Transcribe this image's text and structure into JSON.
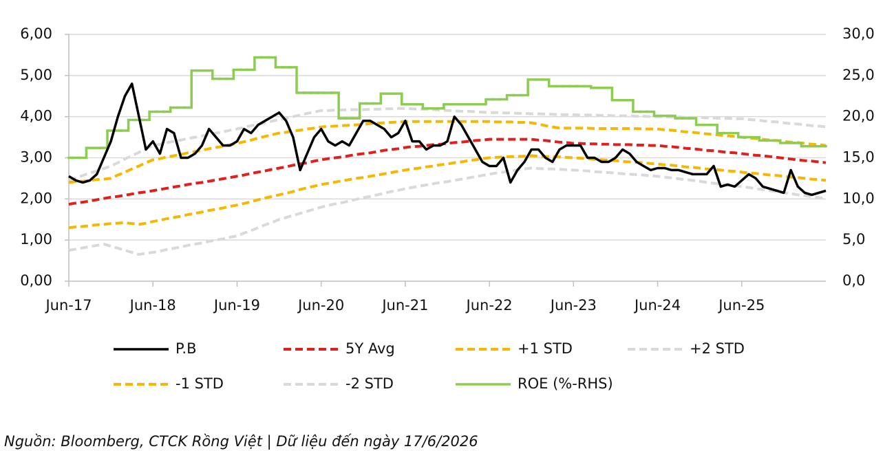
{
  "chart_data": {
    "type": "line",
    "x": [
      "Jun-17",
      "Jul-17",
      "Aug-17",
      "Sep-17",
      "Oct-17",
      "Nov-17",
      "Dec-17",
      "Jan-18",
      "Feb-18",
      "Mar-18",
      "Apr-18",
      "May-18",
      "Jun-18",
      "Jul-18",
      "Aug-18",
      "Sep-18",
      "Oct-18",
      "Nov-18",
      "Dec-18",
      "Jan-19",
      "Feb-19",
      "Mar-19",
      "Apr-19",
      "May-19",
      "Jun-19",
      "Jul-19",
      "Aug-19",
      "Sep-19",
      "Oct-19",
      "Nov-19",
      "Dec-19",
      "Jan-20",
      "Feb-20",
      "Mar-20",
      "Apr-20",
      "May-20",
      "Jun-20",
      "Jul-20",
      "Aug-20",
      "Sep-20",
      "Oct-20",
      "Nov-20",
      "Dec-20",
      "Jan-21",
      "Feb-21",
      "Mar-21",
      "Apr-21",
      "May-21",
      "Jun-21",
      "Jul-21",
      "Aug-21",
      "Sep-21",
      "Oct-21",
      "Nov-21",
      "Dec-21",
      "Jan-22",
      "Feb-22",
      "Mar-22",
      "Apr-22",
      "May-22",
      "Jun-22",
      "Jul-22",
      "Aug-22",
      "Sep-22",
      "Oct-22",
      "Nov-22",
      "Dec-22",
      "Jan-23",
      "Feb-23",
      "Mar-23",
      "Apr-23",
      "May-23",
      "Jun-23",
      "Jul-23",
      "Aug-23",
      "Sep-23",
      "Oct-23",
      "Nov-23",
      "Dec-23",
      "Jan-24",
      "Feb-24",
      "Mar-24",
      "Apr-24",
      "May-24",
      "Jun-24",
      "Jul-24",
      "Aug-24",
      "Sep-24",
      "Oct-24",
      "Nov-24",
      "Dec-24",
      "Jan-25",
      "Feb-25",
      "Mar-25",
      "Apr-25",
      "May-25",
      "Jun-25",
      "Jul-25",
      "Aug-25",
      "Sep-25",
      "Oct-25",
      "Nov-25",
      "Dec-25",
      "Jan-26",
      "Feb-26",
      "Mar-26",
      "Apr-26",
      "May-26",
      "Jun-26"
    ],
    "xticks": [
      "Jun-17",
      "Jun-18",
      "Jun-19",
      "Jun-20",
      "Jun-21",
      "Jun-22",
      "Jun-23",
      "Jun-24",
      "Jun-25"
    ],
    "ylim": [
      0,
      6
    ],
    "yticks": [
      {
        "value": 0,
        "label": "0,00"
      },
      {
        "value": 1,
        "label": "1,00"
      },
      {
        "value": 2,
        "label": "2,00"
      },
      {
        "value": 3,
        "label": "3,00"
      },
      {
        "value": 4,
        "label": "4,00"
      },
      {
        "value": 5,
        "label": "5,00"
      },
      {
        "value": 6,
        "label": "6,00"
      }
    ],
    "y2lim": [
      0,
      30
    ],
    "y2ticks": [
      {
        "value": 0,
        "label": "0,0"
      },
      {
        "value": 5,
        "label": "5,0"
      },
      {
        "value": 10,
        "label": "10,0"
      },
      {
        "value": 15,
        "label": "15,0"
      },
      {
        "value": 20,
        "label": "20,0"
      },
      {
        "value": 25,
        "label": "25,0"
      },
      {
        "value": 30,
        "label": "30,0"
      }
    ],
    "grid": true,
    "series": [
      {
        "name": "P.B",
        "color": "#000000",
        "line_style": "solid",
        "values": [
          2.55,
          2.45,
          2.4,
          2.45,
          2.6,
          3.0,
          3.4,
          4.0,
          4.5,
          4.8,
          4.0,
          3.2,
          3.4,
          3.1,
          3.7,
          3.6,
          3.0,
          3.0,
          3.1,
          3.3,
          3.7,
          3.5,
          3.3,
          3.3,
          3.4,
          3.7,
          3.6,
          3.8,
          3.9,
          4.0,
          4.1,
          3.9,
          3.5,
          2.7,
          3.1,
          3.5,
          3.7,
          3.4,
          3.3,
          3.4,
          3.3,
          3.6,
          3.9,
          3.9,
          3.8,
          3.7,
          3.5,
          3.6,
          3.9,
          3.4,
          3.4,
          3.2,
          3.3,
          3.3,
          3.4,
          4.0,
          3.8,
          3.5,
          3.2,
          2.9,
          2.8,
          2.8,
          3.0,
          2.4,
          2.7,
          2.9,
          3.2,
          3.2,
          3.0,
          2.9,
          3.2,
          3.3,
          3.3,
          3.3,
          3.0,
          3.0,
          2.9,
          2.9,
          3.0,
          3.2,
          3.1,
          2.9,
          2.8,
          2.7,
          2.75,
          2.75,
          2.7,
          2.7,
          2.65,
          2.6,
          2.6,
          2.6,
          2.8,
          2.3,
          2.35,
          2.3,
          2.45,
          2.6,
          2.5,
          2.3,
          2.25,
          2.2,
          2.15,
          2.7,
          2.3,
          2.15,
          2.1,
          2.15,
          2.2
        ]
      },
      {
        "name": "5Y Avg",
        "color": "#e0201c",
        "line_style": "dashed",
        "values": [
          1.87,
          1.9,
          1.92,
          1.95,
          1.98,
          2.01,
          2.04,
          2.06,
          2.09,
          2.12,
          2.15,
          2.17,
          2.2,
          2.23,
          2.26,
          2.29,
          2.32,
          2.35,
          2.38,
          2.4,
          2.43,
          2.46,
          2.49,
          2.52,
          2.55,
          2.58,
          2.62,
          2.65,
          2.68,
          2.72,
          2.75,
          2.78,
          2.82,
          2.85,
          2.88,
          2.92,
          2.95,
          2.98,
          3,
          3.02,
          3.05,
          3.08,
          3.1,
          3.12,
          3.15,
          3.18,
          3.2,
          3.22,
          3.25,
          3.27,
          3.28,
          3.3,
          3.32,
          3.33,
          3.35,
          3.37,
          3.38,
          3.4,
          3.42,
          3.43,
          3.45,
          3.45,
          3.45,
          3.45,
          3.45,
          3.45,
          3.45,
          3.43,
          3.42,
          3.4,
          3.38,
          3.37,
          3.35,
          3.35,
          3.34,
          3.34,
          3.33,
          3.33,
          3.32,
          3.32,
          3.32,
          3.31,
          3.31,
          3.3,
          3.3,
          3.28,
          3.27,
          3.25,
          3.23,
          3.22,
          3.2,
          3.18,
          3.17,
          3.15,
          3.13,
          3.12,
          3.1,
          3.08,
          3.06,
          3.05,
          3.03,
          3.01,
          2.99,
          2.97,
          2.95,
          2.93,
          2.92,
          2.9,
          2.88
        ]
      },
      {
        "name": "+1 STD",
        "color": "#f5b800",
        "line_style": "dashed",
        "values": [
          2.4,
          2.42,
          2.43,
          2.45,
          2.47,
          2.48,
          2.5,
          2.58,
          2.65,
          2.73,
          2.8,
          2.88,
          2.95,
          2.98,
          3.02,
          3.05,
          3.08,
          3.12,
          3.15,
          3.18,
          3.22,
          3.25,
          3.28,
          3.32,
          3.35,
          3.39,
          3.43,
          3.48,
          3.52,
          3.56,
          3.6,
          3.62,
          3.65,
          3.67,
          3.7,
          3.72,
          3.75,
          3.76,
          3.77,
          3.78,
          3.79,
          3.8,
          3.81,
          3.83,
          3.84,
          3.85,
          3.86,
          3.87,
          3.88,
          3.88,
          3.88,
          3.88,
          3.88,
          3.88,
          3.88,
          3.88,
          3.88,
          3.88,
          3.88,
          3.88,
          3.88,
          3.87,
          3.87,
          3.87,
          3.86,
          3.86,
          3.85,
          3.82,
          3.78,
          3.75,
          3.72,
          3.72,
          3.72,
          3.72,
          3.72,
          3.71,
          3.71,
          3.71,
          3.71,
          3.71,
          3.71,
          3.71,
          3.7,
          3.7,
          3.7,
          3.68,
          3.67,
          3.65,
          3.63,
          3.62,
          3.6,
          3.58,
          3.57,
          3.55,
          3.53,
          3.52,
          3.5,
          3.48,
          3.47,
          3.45,
          3.43,
          3.42,
          3.4,
          3.38,
          3.37,
          3.35,
          3.33,
          3.32,
          3.3
        ]
      },
      {
        "name": "+2 STD",
        "color": "#d9d9d9",
        "line_style": "dashed",
        "values": [
          2.45,
          2.51,
          2.57,
          2.63,
          2.68,
          2.74,
          2.8,
          2.88,
          2.97,
          3.05,
          3.13,
          3.22,
          3.3,
          3.33,
          3.37,
          3.4,
          3.43,
          3.47,
          3.5,
          3.53,
          3.57,
          3.6,
          3.63,
          3.67,
          3.7,
          3.74,
          3.78,
          3.81,
          3.85,
          3.89,
          3.93,
          3.96,
          4.0,
          4.04,
          4.08,
          4.11,
          4.15,
          4.15,
          4.16,
          4.16,
          4.17,
          4.17,
          4.17,
          4.18,
          4.18,
          4.19,
          4.19,
          4.2,
          4.2,
          4.19,
          4.18,
          4.18,
          4.17,
          4.16,
          4.15,
          4.14,
          4.13,
          4.13,
          4.12,
          4.11,
          4.1,
          4.1,
          4.09,
          4.09,
          4.08,
          4.08,
          4.07,
          4.07,
          4.06,
          4.06,
          4.05,
          4.05,
          4.05,
          4.04,
          4.04,
          4.04,
          4.03,
          4.03,
          4.02,
          4.02,
          4.02,
          4.01,
          4.01,
          4.0,
          4.0,
          4.0,
          3.99,
          3.99,
          3.98,
          3.98,
          3.98,
          3.97,
          3.97,
          3.96,
          3.96,
          3.95,
          3.95,
          3.93,
          3.92,
          3.9,
          3.88,
          3.87,
          3.85,
          3.83,
          3.82,
          3.8,
          3.78,
          3.77,
          3.75
        ]
      },
      {
        "name": "-1 STD",
        "color": "#f5b800",
        "line_style": "dashed",
        "values": [
          1.3,
          1.32,
          1.33,
          1.35,
          1.37,
          1.38,
          1.4,
          1.41,
          1.42,
          1.4,
          1.38,
          1.41,
          1.45,
          1.48,
          1.52,
          1.55,
          1.58,
          1.62,
          1.65,
          1.68,
          1.72,
          1.75,
          1.78,
          1.82,
          1.85,
          1.89,
          1.93,
          1.98,
          2.02,
          2.06,
          2.1,
          2.14,
          2.18,
          2.23,
          2.27,
          2.31,
          2.35,
          2.38,
          2.41,
          2.44,
          2.47,
          2.5,
          2.52,
          2.55,
          2.58,
          2.61,
          2.64,
          2.67,
          2.7,
          2.73,
          2.75,
          2.78,
          2.8,
          2.83,
          2.85,
          2.88,
          2.9,
          2.93,
          2.95,
          2.98,
          3.0,
          3.01,
          3.02,
          3.03,
          3.03,
          3.04,
          3.05,
          3.04,
          3.03,
          3.03,
          3.02,
          3.01,
          3.0,
          2.99,
          2.98,
          2.96,
          2.95,
          2.94,
          2.93,
          2.91,
          2.9,
          2.89,
          2.88,
          2.86,
          2.85,
          2.83,
          2.82,
          2.8,
          2.78,
          2.77,
          2.75,
          2.73,
          2.72,
          2.7,
          2.68,
          2.67,
          2.65,
          2.63,
          2.62,
          2.6,
          2.58,
          2.57,
          2.55,
          2.53,
          2.52,
          2.5,
          2.48,
          2.47,
          2.45
        ]
      },
      {
        "name": "-2 STD",
        "color": "#d9d9d9",
        "line_style": "dashed",
        "values": [
          0.75,
          0.78,
          0.81,
          0.84,
          0.87,
          0.9,
          0.85,
          0.8,
          0.75,
          0.7,
          0.65,
          0.68,
          0.7,
          0.73,
          0.77,
          0.8,
          0.83,
          0.87,
          0.9,
          0.93,
          0.97,
          1.0,
          1.03,
          1.07,
          1.1,
          1.17,
          1.23,
          1.3,
          1.37,
          1.43,
          1.5,
          1.55,
          1.6,
          1.65,
          1.7,
          1.75,
          1.8,
          1.84,
          1.88,
          1.91,
          1.95,
          1.99,
          2.03,
          2.06,
          2.1,
          2.14,
          2.18,
          2.21,
          2.25,
          2.28,
          2.31,
          2.34,
          2.37,
          2.4,
          2.42,
          2.45,
          2.48,
          2.51,
          2.54,
          2.57,
          2.6,
          2.63,
          2.65,
          2.68,
          2.7,
          2.73,
          2.75,
          2.74,
          2.73,
          2.73,
          2.72,
          2.71,
          2.7,
          2.69,
          2.68,
          2.66,
          2.65,
          2.64,
          2.63,
          2.61,
          2.6,
          2.59,
          2.58,
          2.56,
          2.55,
          2.53,
          2.51,
          2.49,
          2.47,
          2.45,
          2.43,
          2.4,
          2.38,
          2.36,
          2.34,
          2.32,
          2.3,
          2.28,
          2.25,
          2.23,
          2.2,
          2.18,
          2.15,
          2.13,
          2.1,
          2.08,
          2.05,
          2.03,
          2.0
        ]
      },
      {
        "name": "ROE (%-RHS)",
        "color": "#8ccc50",
        "line_style": "step",
        "axis": "y2",
        "values": [
          15.0,
          15.0,
          15.0,
          16.2,
          16.2,
          16.2,
          18.3,
          18.3,
          18.3,
          19.6,
          19.6,
          19.6,
          20.6,
          20.6,
          20.6,
          21.1,
          21.1,
          21.1,
          25.6,
          25.6,
          25.6,
          24.6,
          24.6,
          24.6,
          25.7,
          25.7,
          25.7,
          27.2,
          27.2,
          27.2,
          26.0,
          26.0,
          26.0,
          22.9,
          22.9,
          22.9,
          22.9,
          22.9,
          22.9,
          19.8,
          19.8,
          19.8,
          21.6,
          21.6,
          21.6,
          22.8,
          22.8,
          22.8,
          21.5,
          21.5,
          21.5,
          21.0,
          21.0,
          21.0,
          21.5,
          21.5,
          21.5,
          21.5,
          21.5,
          21.5,
          22.1,
          22.1,
          22.1,
          22.6,
          22.6,
          22.6,
          24.5,
          24.5,
          24.5,
          23.7,
          23.7,
          23.7,
          23.7,
          23.7,
          23.7,
          23.5,
          23.5,
          23.5,
          22.0,
          22.0,
          22.0,
          20.6,
          20.6,
          20.6,
          20.1,
          20.1,
          20.1,
          19.8,
          19.8,
          19.8,
          19.0,
          19.0,
          19.0,
          18.0,
          18.0,
          18.0,
          17.5,
          17.5,
          17.5,
          17.1,
          17.1,
          17.1,
          16.8,
          16.8,
          16.8,
          16.4,
          16.4,
          16.4,
          16.4
        ]
      }
    ],
    "legend_columns": 4,
    "source": "Nguồn: Bloomberg, CTCK Rồng Việt  | Dữ liệu đến ngày 17/6/2026"
  }
}
